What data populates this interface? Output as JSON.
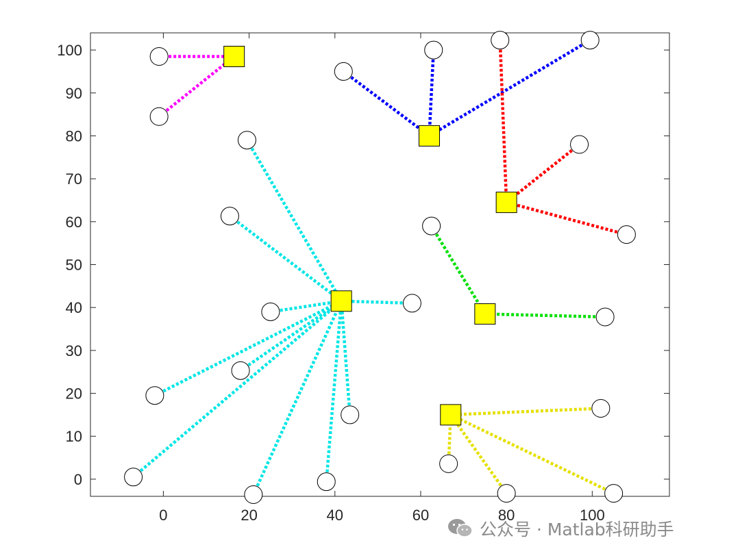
{
  "chart_data": {
    "type": "scatter",
    "xlim": [
      -17,
      118
    ],
    "ylim": [
      -4,
      104
    ],
    "xticks": [
      0,
      20,
      40,
      60,
      80,
      100
    ],
    "yticks": [
      0,
      10,
      20,
      30,
      40,
      50,
      60,
      70,
      80,
      90,
      100
    ],
    "box": true,
    "grid": false,
    "centers": [
      {
        "x": 16.5,
        "y": 98.5,
        "color": "#ff00ff"
      },
      {
        "x": 62,
        "y": 80,
        "color": "#0000ff"
      },
      {
        "x": 80,
        "y": 64.5,
        "color": "#ff0000"
      },
      {
        "x": 41.5,
        "y": 41.5,
        "color": "#00e5e5"
      },
      {
        "x": 75,
        "y": 38.5,
        "color": "#00e000"
      },
      {
        "x": 67,
        "y": 15,
        "color": "#e5e000"
      }
    ],
    "points": [
      {
        "x": -1,
        "y": 98.5,
        "cluster": 0
      },
      {
        "x": -1,
        "y": 84.5,
        "cluster": 0
      },
      {
        "x": 42,
        "y": 95,
        "cluster": 1
      },
      {
        "x": 63,
        "y": 100,
        "cluster": 1
      },
      {
        "x": 99.5,
        "y": 102.3,
        "cluster": 1
      },
      {
        "x": 78.5,
        "y": 102.3,
        "cluster": 2
      },
      {
        "x": 97,
        "y": 78,
        "cluster": 2
      },
      {
        "x": 108,
        "y": 57,
        "cluster": 2
      },
      {
        "x": 19.5,
        "y": 79,
        "cluster": 3
      },
      {
        "x": 15.5,
        "y": 61.3,
        "cluster": 3
      },
      {
        "x": 58,
        "y": 41,
        "cluster": 3
      },
      {
        "x": 25,
        "y": 39,
        "cluster": 3
      },
      {
        "x": 18,
        "y": 25.3,
        "cluster": 3
      },
      {
        "x": -2,
        "y": 19.5,
        "cluster": 3
      },
      {
        "x": 43.5,
        "y": 15,
        "cluster": 3
      },
      {
        "x": -7,
        "y": 0.5,
        "cluster": 3
      },
      {
        "x": 21,
        "y": -3.6,
        "cluster": 3
      },
      {
        "x": 38,
        "y": -0.6,
        "cluster": 3
      },
      {
        "x": 62.5,
        "y": 59,
        "cluster": 4
      },
      {
        "x": 103,
        "y": 37.8,
        "cluster": 4
      },
      {
        "x": 102,
        "y": 16.5,
        "cluster": 5
      },
      {
        "x": 66.5,
        "y": 3.6,
        "cluster": 5
      },
      {
        "x": 80,
        "y": -3.3,
        "cluster": 5
      },
      {
        "x": 105,
        "y": -3.3,
        "cluster": 5
      }
    ]
  },
  "watermark": {
    "text": "公众号 · Matlab科研助手",
    "icon": "wechat-icon"
  }
}
